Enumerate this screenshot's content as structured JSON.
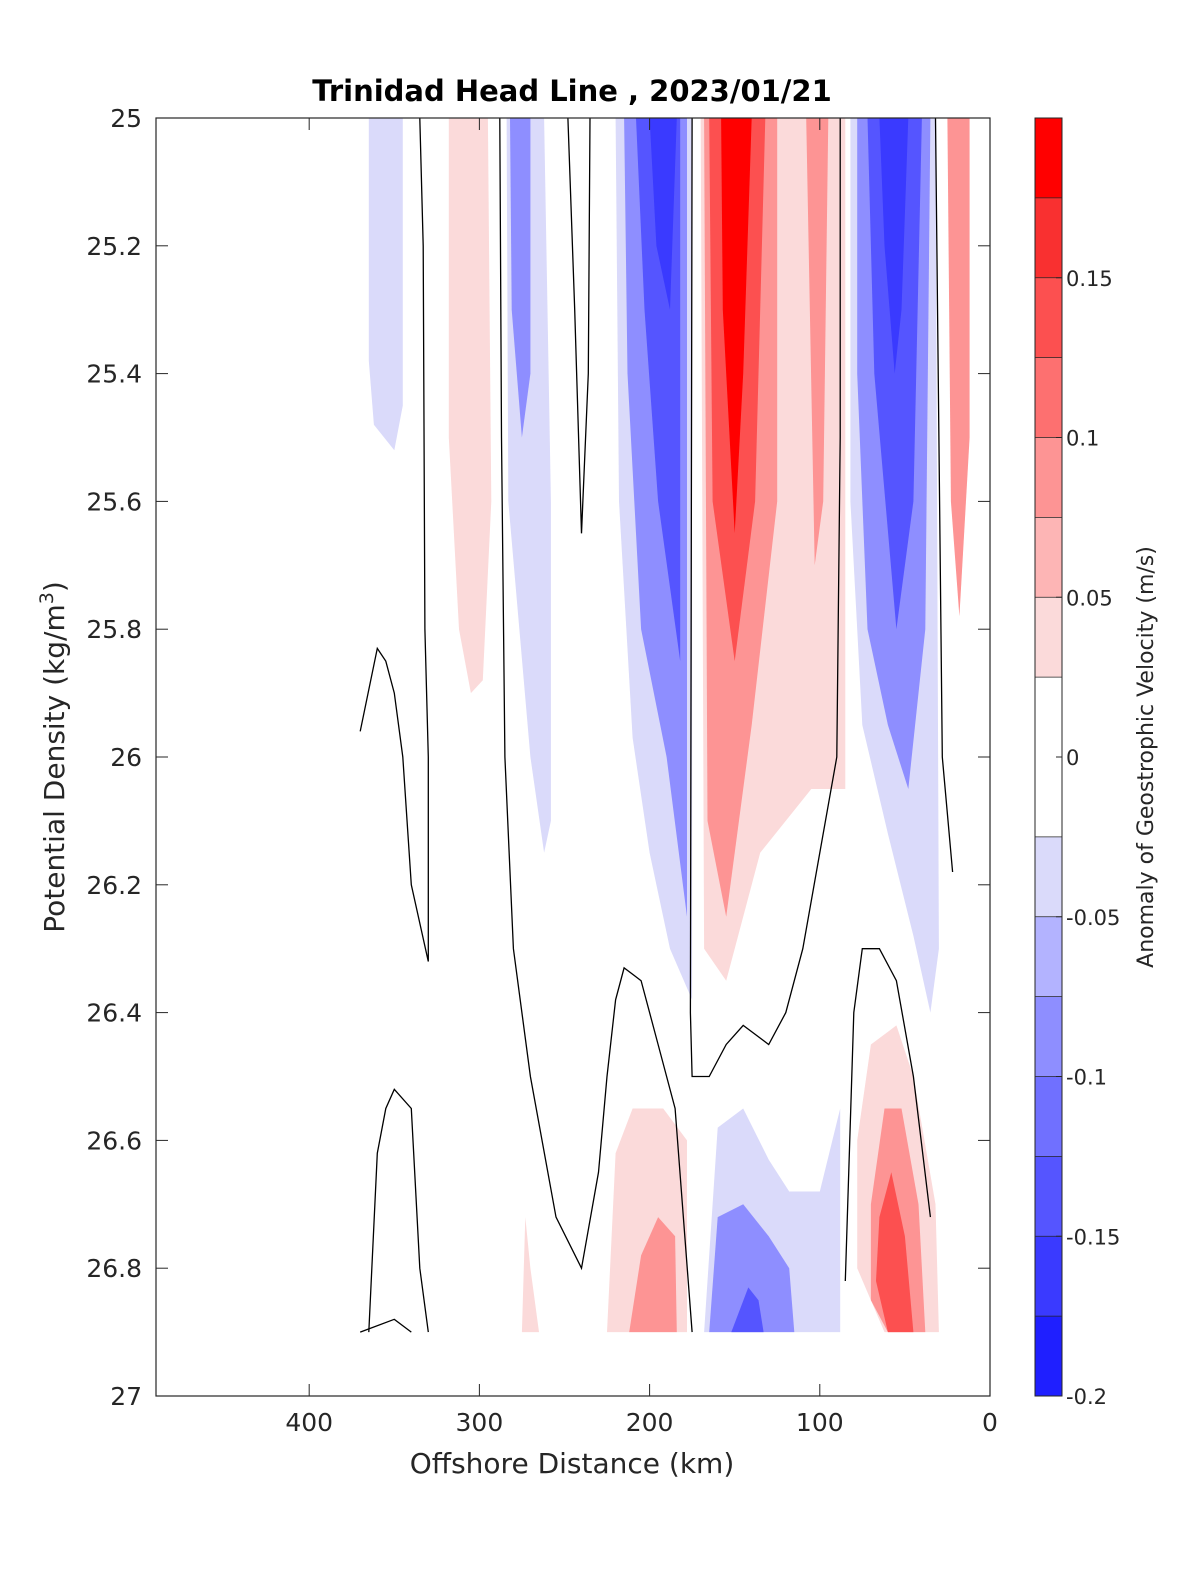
{
  "chart_data": {
    "type": "contour",
    "title": "Trinidad Head Line , 2023/01/21",
    "xlabel": "Offshore Distance (km)",
    "ylabel_main": "Potential Density (kg/m",
    "ylabel_sup": "3",
    "ylabel_close": ")",
    "x_direction": "reversed",
    "y_direction": "reversed",
    "xlim": [
      490,
      0
    ],
    "ylim": [
      25,
      27
    ],
    "x_ticks": [
      400,
      300,
      200,
      100,
      0
    ],
    "x_tick_labels": [
      "400",
      "300",
      "200",
      "100",
      "0"
    ],
    "y_ticks": [
      25,
      25.2,
      25.4,
      25.6,
      25.8,
      26,
      26.2,
      26.4,
      26.6,
      26.8,
      27
    ],
    "y_tick_labels": [
      "25",
      "25.2",
      "25.4",
      "25.6",
      "25.8",
      "26",
      "26.2",
      "26.4",
      "26.6",
      "26.8",
      "27"
    ],
    "grid": false,
    "colorbar": {
      "label": "Anomaly of Geostrophic Velocity (m/s)",
      "range": [
        -0.2,
        0.2
      ],
      "levels": [
        -0.2,
        -0.175,
        -0.15,
        -0.125,
        -0.1,
        -0.075,
        -0.05,
        -0.025,
        0.025,
        0.05,
        0.075,
        0.1,
        0.125,
        0.15,
        0.175,
        0.2
      ],
      "colors": [
        "#1f1fff",
        "#3a3aff",
        "#5555ff",
        "#7070ff",
        "#8e8eff",
        "#b3b3ff",
        "#dadafa",
        "#ffffff",
        "#fbdada",
        "#fdb5b5",
        "#fd9494",
        "#fd7070",
        "#fc5050",
        "#f93030",
        "#ff0000"
      ],
      "tick_values": [
        0.15,
        0.1,
        0.05,
        0,
        -0.05,
        -0.1,
        -0.15,
        -0.2
      ],
      "tick_labels": [
        "0.15",
        "0.1",
        "0.05",
        "0",
        "-0.05",
        "-0.1",
        "-0.15",
        "-0.2"
      ]
    },
    "filled_regions": [
      {
        "value": -0.04,
        "points": [
          [
            370,
            25.0
          ],
          [
            365,
            25.0
          ],
          [
            365,
            25.38
          ],
          [
            362,
            25.48
          ],
          [
            350,
            25.52
          ],
          [
            345,
            25.45
          ],
          [
            345,
            25.0
          ]
        ]
      },
      {
        "value": 0.04,
        "points": [
          [
            318,
            25.0
          ],
          [
            295,
            25.0
          ],
          [
            293,
            25.6
          ],
          [
            298,
            25.88
          ],
          [
            305,
            25.9
          ],
          [
            312,
            25.8
          ],
          [
            318,
            25.5
          ]
        ]
      },
      {
        "value": -0.04,
        "points": [
          [
            284,
            25.0
          ],
          [
            262,
            25.0
          ],
          [
            258,
            25.6
          ],
          [
            258,
            26.1
          ],
          [
            262,
            26.15
          ],
          [
            270,
            26.0
          ],
          [
            283,
            25.6
          ]
        ]
      },
      {
        "value": -0.08,
        "points": [
          [
            282,
            25.0
          ],
          [
            270,
            25.0
          ],
          [
            270,
            25.4
          ],
          [
            275,
            25.5
          ],
          [
            281,
            25.3
          ]
        ]
      },
      {
        "value": -0.04,
        "points": [
          [
            220,
            25.0
          ],
          [
            175,
            25.0
          ],
          [
            175,
            26.38
          ],
          [
            188,
            26.3
          ],
          [
            200,
            26.15
          ],
          [
            210,
            25.97
          ],
          [
            218,
            25.6
          ]
        ]
      },
      {
        "value": -0.08,
        "points": [
          [
            215,
            25.0
          ],
          [
            178,
            25.0
          ],
          [
            178,
            26.25
          ],
          [
            190,
            26.0
          ],
          [
            205,
            25.8
          ],
          [
            213,
            25.4
          ]
        ]
      },
      {
        "value": -0.13,
        "points": [
          [
            208,
            25.0
          ],
          [
            182,
            25.0
          ],
          [
            182,
            25.85
          ],
          [
            195,
            25.6
          ],
          [
            203,
            25.3
          ]
        ]
      },
      {
        "value": -0.17,
        "points": [
          [
            200,
            25.0
          ],
          [
            184,
            25.0
          ],
          [
            188,
            25.3
          ],
          [
            196,
            25.2
          ]
        ]
      },
      {
        "value": 0.04,
        "points": [
          [
            170,
            25.0
          ],
          [
            85,
            25.0
          ],
          [
            85,
            26.05
          ],
          [
            105,
            26.05
          ],
          [
            135,
            26.15
          ],
          [
            155,
            26.35
          ],
          [
            168,
            26.3
          ]
        ]
      },
      {
        "value": 0.08,
        "points": [
          [
            168,
            25.0
          ],
          [
            125,
            25.0
          ],
          [
            125,
            25.6
          ],
          [
            140,
            25.95
          ],
          [
            155,
            26.25
          ],
          [
            166,
            26.1
          ]
        ]
      },
      {
        "value": 0.13,
        "points": [
          [
            165,
            25.0
          ],
          [
            132,
            25.0
          ],
          [
            138,
            25.6
          ],
          [
            150,
            25.85
          ],
          [
            163,
            25.6
          ]
        ]
      },
      {
        "value": 0.18,
        "points": [
          [
            158,
            25.0
          ],
          [
            140,
            25.0
          ],
          [
            145,
            25.4
          ],
          [
            150,
            25.65
          ],
          [
            157,
            25.3
          ]
        ]
      },
      {
        "value": 0.08,
        "points": [
          [
            108,
            25.0
          ],
          [
            95,
            25.0
          ],
          [
            98,
            25.6
          ],
          [
            103,
            25.7
          ]
        ]
      },
      {
        "value": -0.04,
        "points": [
          [
            82,
            25.0
          ],
          [
            32,
            25.0
          ],
          [
            30,
            26.3
          ],
          [
            35,
            26.4
          ],
          [
            45,
            26.28
          ],
          [
            60,
            26.12
          ],
          [
            75,
            25.95
          ],
          [
            82,
            25.6
          ]
        ]
      },
      {
        "value": -0.08,
        "points": [
          [
            78,
            25.0
          ],
          [
            35,
            25.0
          ],
          [
            38,
            25.8
          ],
          [
            48,
            26.05
          ],
          [
            60,
            25.95
          ],
          [
            72,
            25.8
          ],
          [
            78,
            25.4
          ]
        ]
      },
      {
        "value": -0.13,
        "points": [
          [
            72,
            25.0
          ],
          [
            40,
            25.0
          ],
          [
            45,
            25.6
          ],
          [
            55,
            25.8
          ],
          [
            68,
            25.4
          ]
        ]
      },
      {
        "value": -0.17,
        "points": [
          [
            65,
            25.0
          ],
          [
            48,
            25.0
          ],
          [
            52,
            25.3
          ],
          [
            56,
            25.4
          ],
          [
            62,
            25.2
          ]
        ]
      },
      {
        "value": 0.08,
        "points": [
          [
            25,
            25.0
          ],
          [
            12,
            25.0
          ],
          [
            12,
            25.5
          ],
          [
            18,
            25.78
          ],
          [
            23,
            25.6
          ]
        ]
      },
      {
        "value": 0.04,
        "points": [
          [
            275,
            26.9
          ],
          [
            265,
            26.9
          ],
          [
            270,
            26.8
          ],
          [
            273,
            26.72
          ]
        ]
      },
      {
        "value": 0.04,
        "points": [
          [
            225,
            26.9
          ],
          [
            178,
            26.9
          ],
          [
            178,
            26.6
          ],
          [
            192,
            26.55
          ],
          [
            210,
            26.55
          ],
          [
            220,
            26.62
          ]
        ]
      },
      {
        "value": 0.08,
        "points": [
          [
            212,
            26.9
          ],
          [
            184,
            26.9
          ],
          [
            185,
            26.75
          ],
          [
            195,
            26.72
          ],
          [
            205,
            26.78
          ]
        ]
      },
      {
        "value": -0.04,
        "points": [
          [
            168,
            26.9
          ],
          [
            88,
            26.9
          ],
          [
            88,
            26.55
          ],
          [
            100,
            26.68
          ],
          [
            118,
            26.68
          ],
          [
            130,
            26.63
          ],
          [
            145,
            26.55
          ],
          [
            160,
            26.58
          ]
        ]
      },
      {
        "value": -0.08,
        "points": [
          [
            165,
            26.9
          ],
          [
            115,
            26.9
          ],
          [
            118,
            26.8
          ],
          [
            130,
            26.75
          ],
          [
            145,
            26.7
          ],
          [
            160,
            26.72
          ]
        ]
      },
      {
        "value": -0.13,
        "points": [
          [
            152,
            26.9
          ],
          [
            133,
            26.9
          ],
          [
            136,
            26.85
          ],
          [
            142,
            26.83
          ]
        ]
      },
      {
        "value": 0.04,
        "points": [
          [
            78,
            26.8
          ],
          [
            62,
            26.9
          ],
          [
            30,
            26.9
          ],
          [
            32,
            26.7
          ],
          [
            45,
            26.5
          ],
          [
            55,
            26.42
          ],
          [
            70,
            26.45
          ],
          [
            78,
            26.6
          ]
        ]
      },
      {
        "value": 0.08,
        "points": [
          [
            70,
            26.85
          ],
          [
            60,
            26.9
          ],
          [
            38,
            26.9
          ],
          [
            42,
            26.7
          ],
          [
            52,
            26.55
          ],
          [
            62,
            26.55
          ],
          [
            70,
            26.7
          ]
        ]
      },
      {
        "value": 0.13,
        "points": [
          [
            67,
            26.82
          ],
          [
            60,
            26.9
          ],
          [
            45,
            26.9
          ],
          [
            50,
            26.75
          ],
          [
            58,
            26.65
          ],
          [
            65,
            26.72
          ]
        ]
      }
    ],
    "zero_contours": [
      [
        [
          335,
          25.0
        ],
        [
          333,
          25.2
        ],
        [
          332,
          25.8
        ],
        [
          330,
          26.0
        ],
        [
          330,
          26.32
        ],
        [
          340,
          26.2
        ],
        [
          345,
          26.0
        ],
        [
          350,
          25.9
        ],
        [
          355,
          25.85
        ],
        [
          360,
          25.83
        ],
        [
          370,
          25.96
        ]
      ],
      [
        [
          288,
          25.0
        ],
        [
          287,
          25.5
        ],
        [
          285,
          26.0
        ],
        [
          280,
          26.3
        ],
        [
          270,
          26.5
        ],
        [
          255,
          26.72
        ],
        [
          240,
          26.8
        ],
        [
          230,
          26.65
        ],
        [
          225,
          26.5
        ],
        [
          220,
          26.38
        ],
        [
          215,
          26.33
        ],
        [
          205,
          26.35
        ],
        [
          195,
          26.45
        ],
        [
          185,
          26.55
        ],
        [
          175,
          26.9
        ]
      ],
      [
        [
          248,
          25.0
        ],
        [
          244,
          25.3
        ],
        [
          240,
          25.65
        ],
        [
          236,
          25.4
        ],
        [
          235,
          25.0
        ]
      ],
      [
        [
          175,
          25.0
        ],
        [
          176,
          26.4
        ],
        [
          175,
          26.5
        ],
        [
          165,
          26.5
        ],
        [
          155,
          26.45
        ],
        [
          145,
          26.42
        ],
        [
          130,
          26.45
        ],
        [
          120,
          26.4
        ],
        [
          110,
          26.3
        ],
        [
          100,
          26.15
        ],
        [
          90,
          26.0
        ],
        [
          88,
          25.5
        ],
        [
          88,
          25.0
        ]
      ],
      [
        [
          32,
          25.0
        ],
        [
          30,
          25.5
        ],
        [
          28,
          26.0
        ],
        [
          22,
          26.18
        ]
      ],
      [
        [
          370,
          26.9
        ],
        [
          350,
          26.88
        ],
        [
          340,
          26.9
        ]
      ],
      [
        [
          330,
          26.9
        ],
        [
          335,
          26.8
        ],
        [
          340,
          26.55
        ],
        [
          350,
          26.52
        ],
        [
          355,
          26.55
        ],
        [
          360,
          26.62
        ],
        [
          365,
          26.9
        ]
      ],
      [
        [
          85,
          26.82
        ],
        [
          80,
          26.4
        ],
        [
          75,
          26.3
        ],
        [
          65,
          26.3
        ],
        [
          55,
          26.35
        ],
        [
          45,
          26.5
        ],
        [
          35,
          26.72
        ]
      ]
    ]
  }
}
